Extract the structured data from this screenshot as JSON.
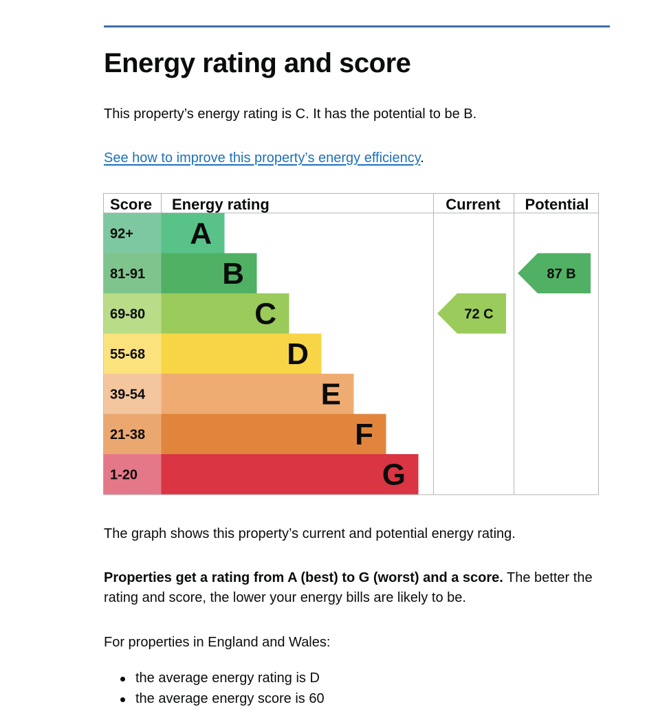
{
  "page": {
    "title": "Energy rating and score",
    "intro": "This property’s energy rating is C. It has the potential to be B.",
    "improve_link": "See how to improve this property’s energy efficiency",
    "improve_link_suffix": ".",
    "graph_caption": "The graph shows this property’s current and potential energy rating.",
    "rating_bold": "Properties get a rating from A (best) to G (worst) and a score.",
    "rating_rest": " The better the rating and score, the lower your energy bills are likely to be.",
    "regions_text": "For properties in England and Wales:",
    "bullets": [
      "the average energy rating is D",
      "the average energy score is 60"
    ]
  },
  "chart_data": {
    "type": "bar",
    "headers": {
      "score": "Score",
      "rating": "Energy rating",
      "current": "Current",
      "potential": "Potential"
    },
    "bands": [
      {
        "letter": "A",
        "range": "92+",
        "color": "#58c288",
        "score_color": "#7dc8a0"
      },
      {
        "letter": "B",
        "range": "81-91",
        "color": "#50b064",
        "score_color": "#7fc48c"
      },
      {
        "letter": "C",
        "range": "69-80",
        "color": "#9bcb5a",
        "score_color": "#b8dc88"
      },
      {
        "letter": "D",
        "range": "55-68",
        "color": "#f8d546",
        "score_color": "#fbe27c"
      },
      {
        "letter": "E",
        "range": "39-54",
        "color": "#efac72",
        "score_color": "#f4c69e"
      },
      {
        "letter": "F",
        "range": "21-38",
        "color": "#e1853c",
        "score_color": "#eaa870"
      },
      {
        "letter": "G",
        "range": "1-20",
        "color": "#d93542",
        "score_color": "#e57888"
      }
    ],
    "current": {
      "score": 72,
      "letter": "C",
      "label": "72  C",
      "color": "#9bcb5a"
    },
    "potential": {
      "score": 87,
      "letter": "B",
      "label": "87  B",
      "color": "#50b064"
    }
  }
}
